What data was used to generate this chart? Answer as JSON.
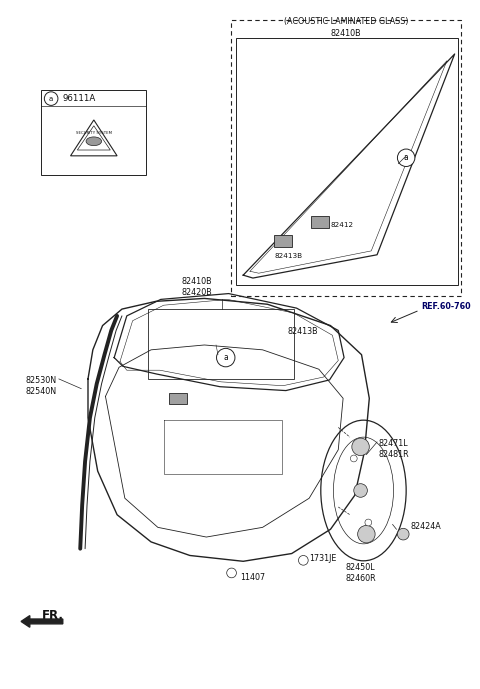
{
  "bg": "#ffffff",
  "lc": "#222222",
  "tc": "#111111",
  "fw": 4.8,
  "fh": 6.89,
  "dpi": 100,
  "acoustic_title": "(ACOUSTIC LAMINATED GLASS)",
  "lbl_82410B_82420B": "82410B\n82420B",
  "lbl_82412": "82412",
  "lbl_82413B": "82413B",
  "lbl_96111A": "96111A",
  "lbl_82530N_82540N": "82530N\n82540N",
  "lbl_REF": "REF.60-760",
  "lbl_82471L_82481R": "82471L\n82481R",
  "lbl_82424A": "82424A",
  "lbl_1731JE": "1731JE",
  "lbl_82450L_82460R": "82450L\n82460R",
  "lbl_11407": "11407",
  "lbl_FR": "FR."
}
